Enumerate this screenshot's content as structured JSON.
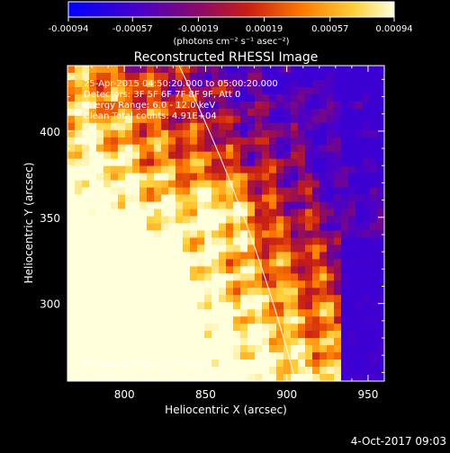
{
  "chart_data": {
    "type": "heatmap",
    "title": "Reconstructed RHESSI Image",
    "xlabel": "Heliocentric X (arcsec)",
    "ylabel": "Heliocentric Y (arcsec)",
    "xlim": [
      765,
      960
    ],
    "ylim": [
      255,
      438
    ],
    "x_ticks": [
      "800",
      "850",
      "900",
      "950"
    ],
    "y_ticks": [
      "300",
      "350",
      "400"
    ],
    "x_tick_values": [
      800,
      850,
      900,
      950
    ],
    "y_tick_values": [
      300,
      350,
      400
    ],
    "colorbar": {
      "min": -0.00094,
      "max": 0.00094,
      "tick_labels": [
        "-0.00094",
        "-0.00057",
        "-0.00019",
        "0.00019",
        "0.00057",
        "0.00094"
      ],
      "unit_label": "(photons cm⁻² s⁻¹ asec⁻²)"
    },
    "annotations": [
      "25-Apr-2015 04:50:20.000 to 05:00:20.000",
      "Detectors: 3F 5F 6F 7F 8F 9F, Att 0",
      "Energy Range: 6.0 - 12.0 keV",
      "Clean     Total counts: 4.91E+04"
    ],
    "peak_label": "Position of Peak = [795,283]",
    "peak_position": [
      795,
      283
    ],
    "limb_color": "#ffffff",
    "footer_date": "4-Oct-2017 09:03"
  }
}
